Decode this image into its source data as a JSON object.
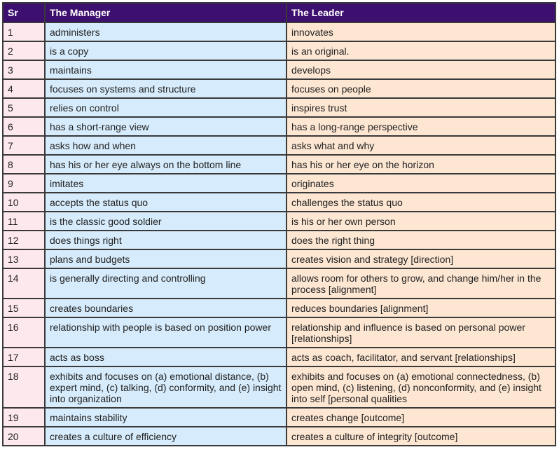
{
  "table": {
    "headers": [
      "Sr",
      "The Manager",
      "The Leader"
    ],
    "rows": [
      {
        "sr": "1",
        "manager": "administers",
        "leader": "innovates"
      },
      {
        "sr": "2",
        "manager": "is a copy",
        "leader": "is an original."
      },
      {
        "sr": "3",
        "manager": "maintains",
        "leader": "develops"
      },
      {
        "sr": "4",
        "manager": "focuses on systems and structure",
        "leader": "focuses on people"
      },
      {
        "sr": "5",
        "manager": "relies on control",
        "leader": "inspires trust"
      },
      {
        "sr": "6",
        "manager": "has a short-range view",
        "leader": "has a long-range perspective"
      },
      {
        "sr": "7",
        "manager": "asks how and when",
        "leader": "asks what and why"
      },
      {
        "sr": "8",
        "manager": "has his or her eye always on the bottom line",
        "leader": "has his or her eye on the horizon"
      },
      {
        "sr": "9",
        "manager": "imitates",
        "leader": "originates"
      },
      {
        "sr": "10",
        "manager": "accepts the status quo",
        "leader": "challenges the status quo"
      },
      {
        "sr": "11",
        "manager": "is the classic good soldier",
        "leader": "is his or her own person"
      },
      {
        "sr": "12",
        "manager": "does things right",
        "leader": "does the right thing"
      },
      {
        "sr": "13",
        "manager": "plans and budgets",
        "leader": "creates vision and strategy [direction]"
      },
      {
        "sr": "14",
        "manager": "is generally directing and controlling",
        "leader": "allows room for others to grow, and change him/her in the process [alignment]"
      },
      {
        "sr": "15",
        "manager": "creates boundaries",
        "leader": "reduces boundaries [alignment]"
      },
      {
        "sr": "16",
        "manager": "relationship with people is based on position power",
        "leader": "relationship and influence is based on personal power [relationships]"
      },
      {
        "sr": "17",
        "manager": "acts as boss",
        "leader": "acts as coach, facilitator, and servant [relationships]"
      },
      {
        "sr": "18",
        "manager": "exhibits and focuses on (a) emotional distance, (b) expert mind, (c) talking, (d) conformity, and (e) insight into organization",
        "leader": "exhibits and focuses on (a) emotional connectedness, (b) open mind, (c) listening, (d) nonconformity, and (e) insight into self [personal qualities"
      },
      {
        "sr": "19",
        "manager": "maintains stability",
        "leader": "creates change [outcome]"
      },
      {
        "sr": "20",
        "manager": "creates a culture of efficiency",
        "leader": "creates a culture of integrity [outcome]"
      }
    ]
  }
}
